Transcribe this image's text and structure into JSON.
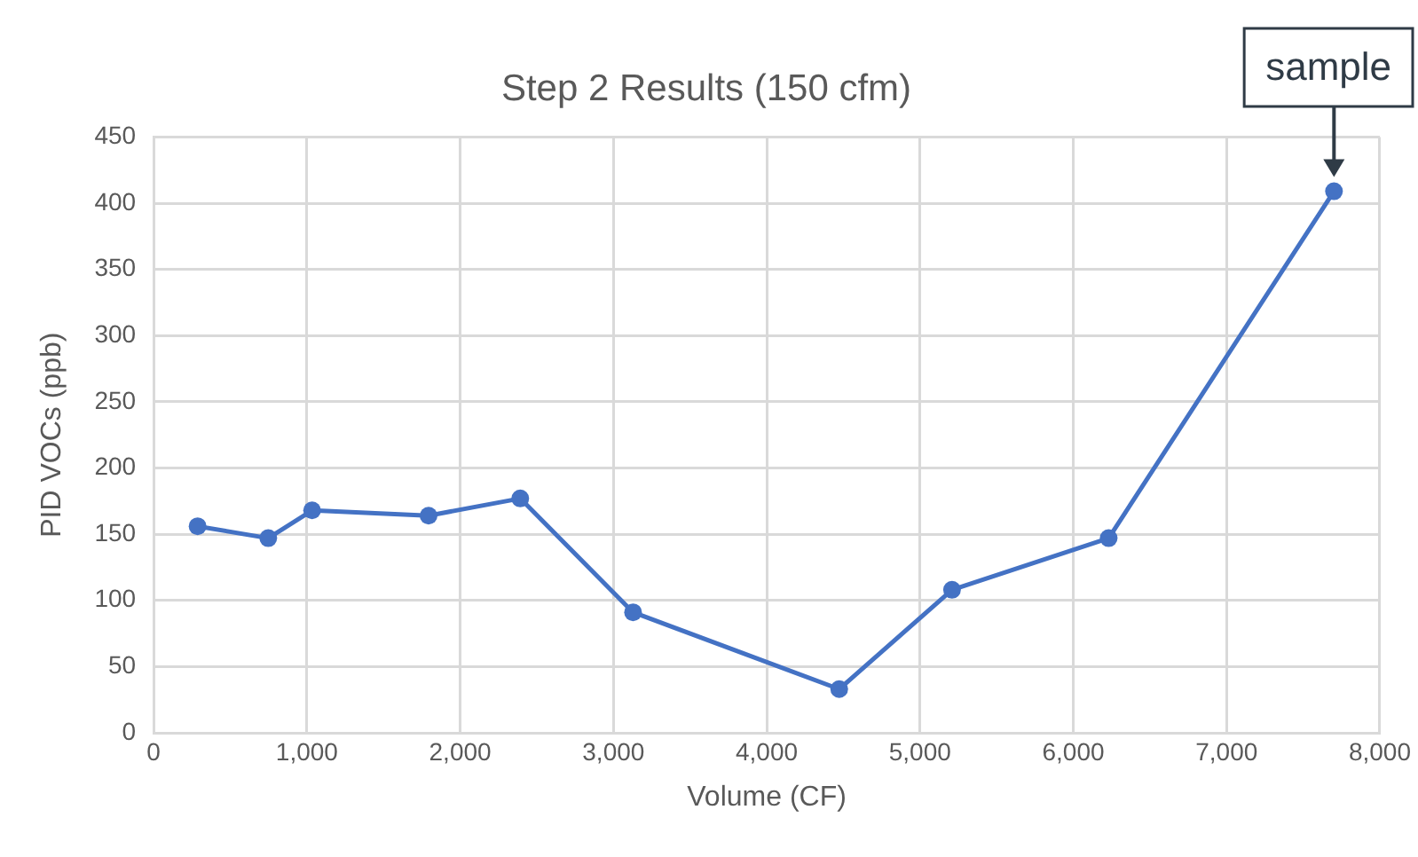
{
  "chart_data": {
    "type": "line",
    "title": "Step 2 Results (150 cfm)",
    "xlabel": "Volume (CF)",
    "ylabel": "PID VOCs (ppb)",
    "x": [
      287,
      748,
      1034,
      1794,
      2392,
      3128,
      4473,
      5209,
      6231,
      7701
    ],
    "series": [
      {
        "color": "#4472c4",
        "values": [
          156,
          147,
          168,
          164,
          177,
          91,
          33,
          108,
          147,
          409
        ]
      }
    ],
    "xlim": [
      0,
      8000
    ],
    "xticks": [
      {
        "value": 0,
        "label": "0"
      },
      {
        "value": 1000,
        "label": "1,000"
      },
      {
        "value": 2000,
        "label": "2,000"
      },
      {
        "value": 3000,
        "label": "3,000"
      },
      {
        "value": 4000,
        "label": "4,000"
      },
      {
        "value": 5000,
        "label": "5,000"
      },
      {
        "value": 6000,
        "label": "6,000"
      },
      {
        "value": 7000,
        "label": "7,000"
      },
      {
        "value": 8000,
        "label": "8,000"
      }
    ],
    "ylim": [
      0,
      450
    ],
    "yticks": [
      0,
      50,
      100,
      150,
      200,
      250,
      300,
      350,
      400,
      450
    ],
    "annotations": [
      {
        "text": "sample",
        "x": 7701,
        "y": 409
      }
    ],
    "grid": true,
    "legend": false,
    "marker": "circle",
    "line_style": "solid"
  }
}
